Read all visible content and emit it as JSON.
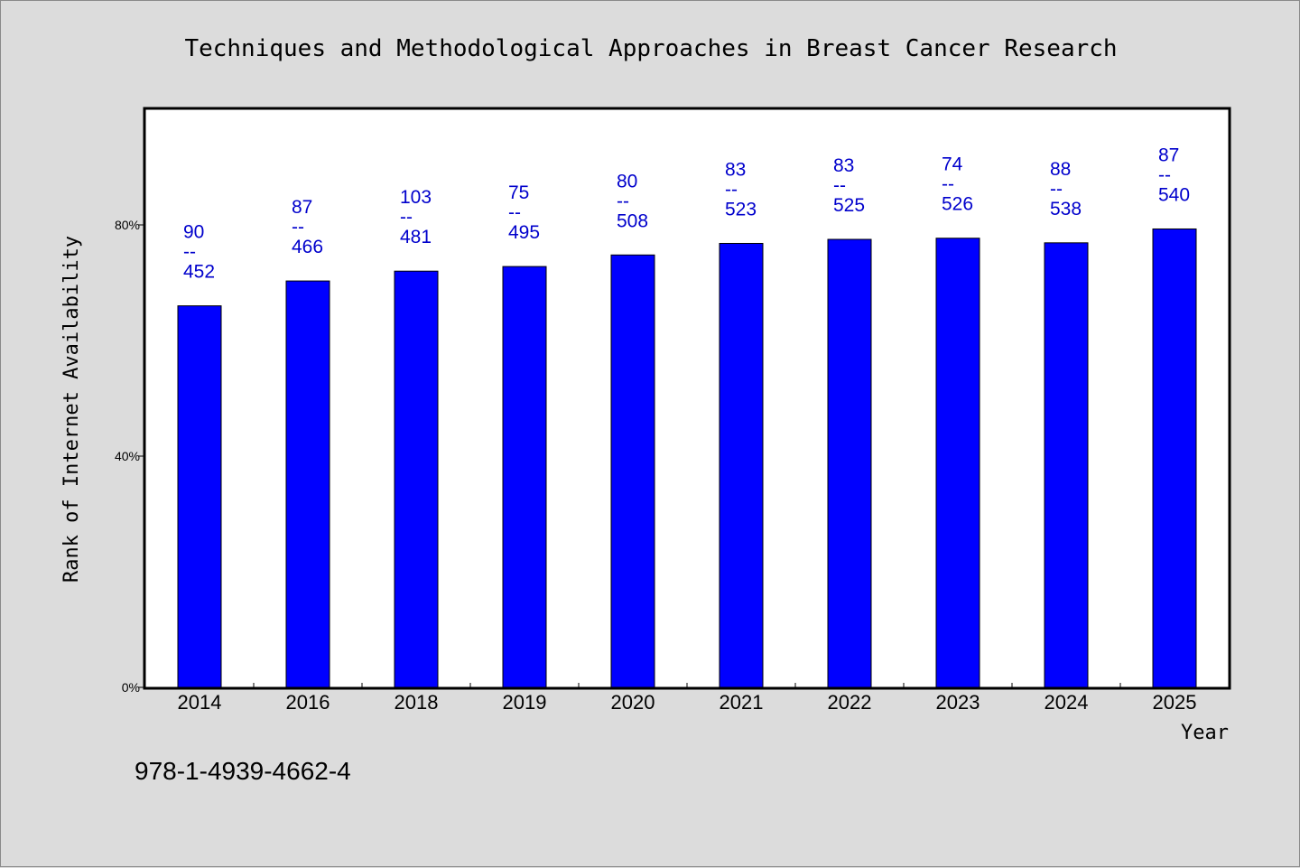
{
  "chart_data": {
    "type": "bar",
    "title": "Techniques and Methodological Approaches in Breast Cancer Research",
    "ylabel": "Rank of Internet Availability",
    "xlabel": "Year",
    "categories": [
      "2014",
      "2016",
      "2018",
      "2019",
      "2020",
      "2021",
      "2022",
      "2023",
      "2024",
      "2025"
    ],
    "values": [
      66,
      70.3,
      72,
      72.8,
      74.8,
      76.8,
      77.5,
      77.7,
      76.9,
      79.3
    ],
    "ylim": [
      0,
      100
    ],
    "yticks": [
      0,
      40,
      80
    ],
    "ytick_labels": [
      "0%",
      "40%",
      "80%"
    ],
    "data_labels": [
      {
        "top": "90",
        "sep": "--",
        "bottom": "452"
      },
      {
        "top": "87",
        "sep": "--",
        "bottom": "466"
      },
      {
        "top": "103",
        "sep": "--",
        "bottom": "481"
      },
      {
        "top": "75",
        "sep": "--",
        "bottom": "495"
      },
      {
        "top": "80",
        "sep": "--",
        "bottom": "508"
      },
      {
        "top": "83",
        "sep": "--",
        "bottom": "523"
      },
      {
        "top": "83",
        "sep": "--",
        "bottom": "525"
      },
      {
        "top": "74",
        "sep": "--",
        "bottom": "526"
      },
      {
        "top": "88",
        "sep": "--",
        "bottom": "538"
      },
      {
        "top": "87",
        "sep": "--",
        "bottom": "540"
      }
    ],
    "grid": false,
    "bar_color": "#0000ff",
    "label_color": "#0000cc",
    "plot_background": "#ffffff",
    "page_background": "#dcdcdc"
  },
  "footer": {
    "isbn": "978-1-4939-4662-4"
  }
}
